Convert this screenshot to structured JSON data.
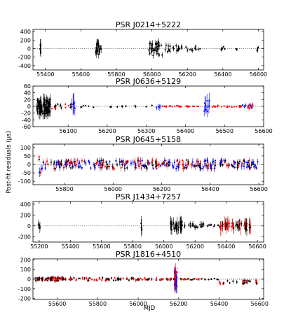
{
  "figure": {
    "ylabel": "Post-fit residuals (μs)",
    "xlabel": "MJD"
  },
  "chart_data": [
    {
      "type": "scatter",
      "title": "PSR J0214+5222",
      "xlim": [
        55330,
        56630
      ],
      "ylim": [
        -500,
        450
      ],
      "xticks": [
        55400,
        55600,
        55800,
        56000,
        56200,
        56400,
        56600
      ],
      "yticks": [
        -400,
        -200,
        0,
        200,
        400
      ],
      "colors": [
        "#000000",
        "#ff0000",
        "#0000ff"
      ],
      "clusters": [
        {
          "x": [
            55370,
            55375
          ],
          "n": 6,
          "err": 150,
          "spread": 150,
          "colors": [
            0
          ]
        },
        {
          "x": [
            55680,
            55715
          ],
          "n": 22,
          "err": 120,
          "spread": 170,
          "colors": [
            0
          ]
        },
        {
          "x": [
            55980,
            56060
          ],
          "n": 34,
          "err": 110,
          "spread": 160,
          "colors": [
            0
          ]
        },
        {
          "x": [
            56070,
            56170
          ],
          "n": 20,
          "err": 80,
          "spread": 80,
          "colors": [
            0
          ]
        },
        {
          "x": [
            56190,
            56280
          ],
          "n": 10,
          "err": 60,
          "spread": 50,
          "colors": [
            0
          ]
        },
        {
          "x": [
            56390,
            56420
          ],
          "n": 6,
          "err": 60,
          "spread": 50,
          "colors": [
            0
          ]
        },
        {
          "x": [
            56470,
            56480
          ],
          "n": 3,
          "err": 50,
          "spread": 30,
          "colors": [
            0
          ]
        },
        {
          "x": [
            56590,
            56600
          ],
          "n": 4,
          "err": 70,
          "spread": 50,
          "colors": [
            0
          ]
        }
      ]
    },
    {
      "type": "scatter",
      "title": "PSR J0636+5129",
      "xlim": [
        56010,
        56600
      ],
      "ylim": [
        -60,
        60
      ],
      "xticks": [
        56100,
        56200,
        56300,
        56400,
        56500,
        56600
      ],
      "yticks": [
        -60,
        -40,
        -20,
        0,
        20,
        40,
        60
      ],
      "colors": [
        "#000000",
        "#ff0000",
        "#0000ff"
      ],
      "clusters": [
        {
          "x": [
            56020,
            56055
          ],
          "n": 90,
          "err": 18,
          "spread": 22,
          "colors": [
            0
          ]
        },
        {
          "x": [
            56058,
            56110
          ],
          "n": 18,
          "err": 6,
          "spread": 8,
          "colors": [
            0,
            1
          ]
        },
        {
          "x": [
            56108,
            56118
          ],
          "n": 5,
          "err": 40,
          "spread": 12,
          "colors": [
            2
          ]
        },
        {
          "x": [
            56130,
            56320
          ],
          "n": 16,
          "err": 4,
          "spread": 3,
          "colors": [
            0
          ]
        },
        {
          "x": [
            56325,
            56335
          ],
          "n": 4,
          "err": 14,
          "spread": 5,
          "colors": [
            2
          ]
        },
        {
          "x": [
            56340,
            56440
          ],
          "n": 26,
          "err": 3,
          "spread": 2,
          "colors": [
            1
          ]
        },
        {
          "x": [
            56445,
            56462
          ],
          "n": 10,
          "err": 25,
          "spread": 18,
          "colors": [
            2
          ]
        },
        {
          "x": [
            56462,
            56545
          ],
          "n": 22,
          "err": 3,
          "spread": 3,
          "colors": [
            1
          ]
        },
        {
          "x": [
            56545,
            56575
          ],
          "n": 14,
          "err": 8,
          "spread": 6,
          "colors": [
            1,
            2
          ]
        }
      ]
    },
    {
      "type": "scatter",
      "title": "PSR J0645+5158",
      "xlim": [
        55670,
        56620
      ],
      "ylim": [
        -120,
        120
      ],
      "xticks": [
        55800,
        56000,
        56200,
        56400,
        56600
      ],
      "yticks": [
        -100,
        -50,
        0,
        50,
        100
      ],
      "colors": [
        "#000000",
        "#ff0000",
        "#0000ff"
      ],
      "clusters": [
        {
          "x": [
            55695,
            55705
          ],
          "n": 6,
          "err": 30,
          "spread": 50,
          "colors": [
            0,
            1,
            2
          ]
        },
        {
          "x": [
            55705,
            56600
          ],
          "n": 300,
          "err": 22,
          "spread": 26,
          "colors": [
            0,
            1,
            2
          ]
        }
      ]
    },
    {
      "type": "scatter",
      "title": "PSR J1434+7257",
      "xlim": [
        55160,
        56640
      ],
      "ylim": [
        -300,
        450
      ],
      "xticks": [
        55200,
        55400,
        55600,
        55800,
        56000,
        56200,
        56400,
        56600
      ],
      "yticks": [
        -200,
        0,
        200,
        400
      ],
      "colors": [
        "#000000",
        "#ff0000",
        "#0000ff"
      ],
      "clusters": [
        {
          "x": [
            55195,
            55205
          ],
          "n": 4,
          "err": 100,
          "spread": 60,
          "colors": [
            0
          ]
        },
        {
          "x": [
            55850,
            55860
          ],
          "n": 3,
          "err": 160,
          "spread": 80,
          "colors": [
            0
          ]
        },
        {
          "x": [
            56040,
            56120
          ],
          "n": 40,
          "err": 120,
          "spread": 90,
          "colors": [
            0
          ]
        },
        {
          "x": [
            56130,
            56260
          ],
          "n": 20,
          "err": 60,
          "spread": 40,
          "colors": [
            0
          ]
        },
        {
          "x": [
            56280,
            56360
          ],
          "n": 8,
          "err": 30,
          "spread": 20,
          "colors": [
            0
          ]
        },
        {
          "x": [
            56360,
            56560
          ],
          "n": 45,
          "err": 140,
          "spread": 60,
          "colors": [
            1,
            0
          ]
        },
        {
          "x": [
            56520,
            56540
          ],
          "n": 4,
          "err": 120,
          "spread": 80,
          "colors": [
            0
          ]
        }
      ]
    },
    {
      "type": "scatter",
      "title": "PSR J1816+4510",
      "xlim": [
        55480,
        56620
      ],
      "ylim": [
        -210,
        210
      ],
      "xticks": [
        55600,
        55800,
        56000,
        56200,
        56400,
        56600
      ],
      "yticks": [
        -200,
        -100,
        0,
        100,
        200
      ],
      "colors": [
        "#000000",
        "#ff0000",
        "#0000ff"
      ],
      "clusters": [
        {
          "x": [
            55490,
            55560
          ],
          "n": 30,
          "err": 20,
          "spread": 15,
          "colors": [
            0,
            1
          ]
        },
        {
          "x": [
            55560,
            55640
          ],
          "n": 40,
          "err": 25,
          "spread": 18,
          "colors": [
            1,
            0
          ]
        },
        {
          "x": [
            55640,
            55990
          ],
          "n": 60,
          "err": 20,
          "spread": 15,
          "colors": [
            0,
            1
          ]
        },
        {
          "x": [
            55990,
            56180
          ],
          "n": 40,
          "err": 14,
          "spread": 12,
          "colors": [
            0,
            1
          ]
        },
        {
          "x": [
            56178,
            56192
          ],
          "n": 30,
          "err": 100,
          "spread": 80,
          "colors": [
            2,
            1
          ]
        },
        {
          "x": [
            56200,
            56400
          ],
          "n": 30,
          "err": 10,
          "spread": 8,
          "colors": [
            1,
            0
          ]
        },
        {
          "x": [
            56400,
            56600
          ],
          "n": 30,
          "err": 22,
          "spread": 20,
          "offset": -30,
          "colors": [
            1,
            0
          ]
        }
      ]
    }
  ]
}
